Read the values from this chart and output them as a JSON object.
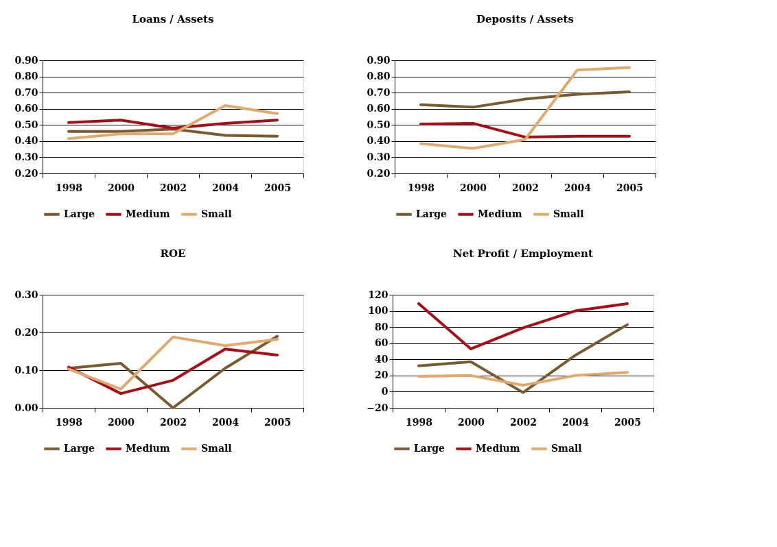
{
  "chart_data": [
    {
      "type": "line",
      "title": "Loans / Assets",
      "categories": [
        "1998",
        "2000",
        "2002",
        "2004",
        "2005"
      ],
      "ylim": [
        0.2,
        0.9
      ],
      "yticks": [
        {
          "value": 0.2,
          "label": "0.20"
        },
        {
          "value": 0.3,
          "label": "0.30"
        },
        {
          "value": 0.4,
          "label": "0.40"
        },
        {
          "value": 0.5,
          "label": "0.50"
        },
        {
          "value": 0.6,
          "label": "0.60"
        },
        {
          "value": 0.7,
          "label": "0.70"
        },
        {
          "value": 0.8,
          "label": "0.80"
        },
        {
          "value": 0.9,
          "label": "0.90"
        }
      ],
      "grid": "y",
      "legend": "bottom",
      "line_style": "solid",
      "series": [
        {
          "name": "Large",
          "color": "#7a5a30",
          "values": [
            0.46,
            0.46,
            0.475,
            0.435,
            0.43
          ]
        },
        {
          "name": "Medium",
          "color": "#a50f15",
          "values": [
            0.515,
            0.53,
            0.48,
            0.51,
            0.53
          ]
        },
        {
          "name": "Small",
          "color": "#e0aa6e",
          "values": [
            0.415,
            0.445,
            0.445,
            0.62,
            0.57
          ]
        }
      ]
    },
    {
      "type": "line",
      "title": "Deposits / Assets",
      "categories": [
        "1998",
        "2000",
        "2002",
        "2004",
        "2005"
      ],
      "ylim": [
        0.2,
        0.9
      ],
      "yticks": [
        {
          "value": 0.2,
          "label": "0.20"
        },
        {
          "value": 0.3,
          "label": "0.30"
        },
        {
          "value": 0.4,
          "label": "0.40"
        },
        {
          "value": 0.5,
          "label": "0.50"
        },
        {
          "value": 0.6,
          "label": "0.60"
        },
        {
          "value": 0.7,
          "label": "0.70"
        },
        {
          "value": 0.8,
          "label": "0.80"
        },
        {
          "value": 0.9,
          "label": "0.90"
        }
      ],
      "grid": "y",
      "legend": "bottom",
      "line_style": "solid",
      "series": [
        {
          "name": "Large",
          "color": "#7a5a30",
          "values": [
            0.625,
            0.61,
            0.66,
            0.69,
            0.705
          ]
        },
        {
          "name": "Medium",
          "color": "#a50f15",
          "values": [
            0.505,
            0.51,
            0.425,
            0.43,
            0.43
          ]
        },
        {
          "name": "Small",
          "color": "#e0aa6e",
          "values": [
            0.385,
            0.355,
            0.41,
            0.84,
            0.855
          ]
        }
      ]
    },
    {
      "type": "line",
      "title": "ROE",
      "categories": [
        "1998",
        "2000",
        "2002",
        "2004",
        "2005"
      ],
      "ylim": [
        0.0,
        0.3
      ],
      "yticks": [
        {
          "value": 0.0,
          "label": "0.00"
        },
        {
          "value": 0.1,
          "label": "0.10"
        },
        {
          "value": 0.2,
          "label": "0.20"
        },
        {
          "value": 0.3,
          "label": "0.30"
        }
      ],
      "grid": "y",
      "legend": "bottom",
      "line_style": "solid",
      "series": [
        {
          "name": "Large",
          "color": "#7a5a30",
          "values": [
            0.105,
            0.118,
            0.0,
            0.105,
            0.19
          ]
        },
        {
          "name": "Medium",
          "color": "#a50f15",
          "values": [
            0.108,
            0.038,
            0.073,
            0.156,
            0.14
          ]
        },
        {
          "name": "Small",
          "color": "#e0aa6e",
          "values": [
            0.103,
            0.05,
            0.188,
            0.165,
            0.182
          ]
        }
      ]
    },
    {
      "type": "line",
      "title": "Net Profit / Employment",
      "categories": [
        "1998",
        "2000",
        "2002",
        "2004",
        "2005"
      ],
      "ylim": [
        -20,
        120
      ],
      "yticks": [
        -20,
        0,
        20,
        40,
        60,
        80,
        100,
        120
      ],
      "grid": "y",
      "legend": "bottom",
      "line_style": "solid",
      "series": [
        {
          "name": "Large",
          "color": "#7a5a30",
          "values": [
            32,
            37,
            -1,
            45,
            83
          ]
        },
        {
          "name": "Medium",
          "color": "#a50f15",
          "values": [
            109,
            53,
            79,
            100,
            109
          ]
        },
        {
          "name": "Small",
          "color": "#e0aa6e",
          "values": [
            19,
            20,
            8,
            20,
            24
          ]
        }
      ]
    }
  ]
}
